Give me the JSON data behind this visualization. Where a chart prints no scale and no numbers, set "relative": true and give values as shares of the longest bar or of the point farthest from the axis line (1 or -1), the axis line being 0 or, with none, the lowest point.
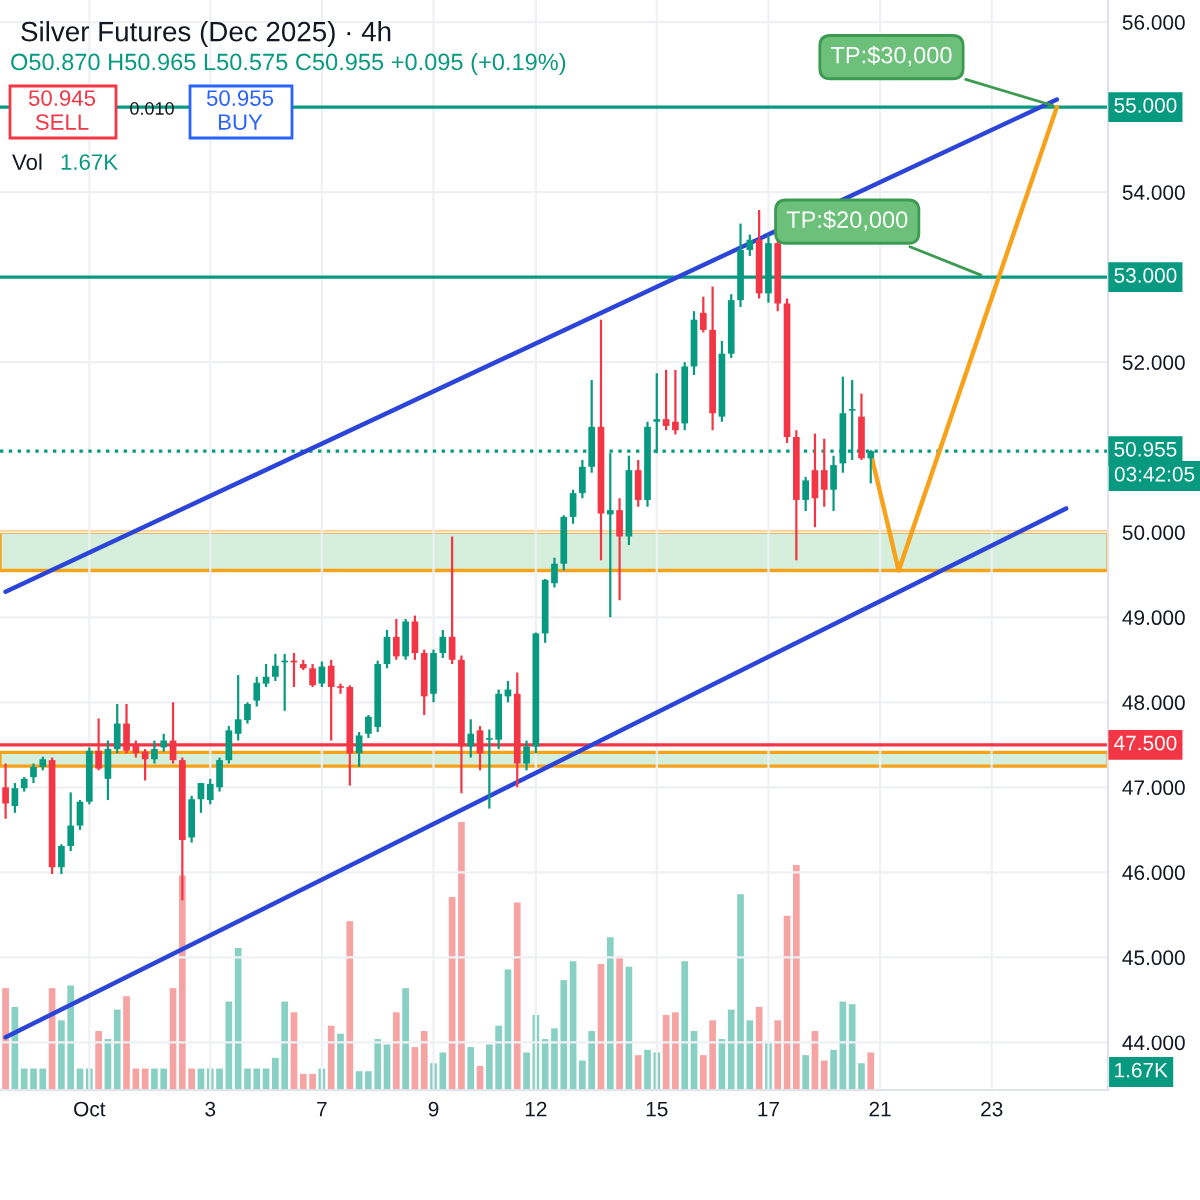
{
  "chart_data": [
    {
      "type": "candlestick",
      "title": "Silver Futures (Dec 2025) · 4h",
      "subtitle": "O50.870 H50.965 L50.575 C50.955 +0.095 (+0.19%)",
      "categories": [
        null,
        null,
        null,
        null,
        null,
        null,
        null,
        null,
        null,
        "Oct",
        null,
        null,
        null,
        null,
        null,
        null,
        null,
        null,
        null,
        null,
        null,
        null,
        "3",
        null,
        null,
        null,
        null,
        null,
        null,
        null,
        null,
        null,
        null,
        null,
        "7",
        null,
        null,
        null,
        null,
        null,
        null,
        null,
        null,
        null,
        null,
        null,
        "9",
        null,
        null,
        null,
        null,
        null,
        null,
        null,
        null,
        null,
        null,
        "12",
        null,
        null,
        null,
        null,
        null,
        null,
        null,
        null,
        null,
        null,
        null,
        null,
        "15",
        null,
        null,
        null,
        null,
        null,
        null,
        null,
        null,
        null,
        null,
        null,
        "17",
        null,
        null,
        null,
        null,
        null,
        null,
        null,
        null,
        null,
        null,
        null,
        "21",
        null,
        null,
        null,
        null,
        null,
        null,
        null,
        null,
        null,
        null,
        null,
        "23",
        null,
        null,
        null,
        null,
        null,
        null,
        null,
        null,
        null,
        null,
        null,
        null
      ],
      "ohlc": [
        [
          47.0,
          47.28,
          46.63,
          46.81
        ],
        [
          46.78,
          47.05,
          46.7,
          46.99
        ],
        [
          46.99,
          47.12,
          46.95,
          47.1
        ],
        [
          47.12,
          47.28,
          47.05,
          47.24
        ],
        [
          47.24,
          47.36,
          47.2,
          47.33
        ],
        [
          47.32,
          47.35,
          45.98,
          46.06
        ],
        [
          46.06,
          46.33,
          45.98,
          46.31
        ],
        [
          46.31,
          46.94,
          46.25,
          46.55
        ],
        [
          46.55,
          46.85,
          46.5,
          46.83
        ],
        [
          46.83,
          47.47,
          46.8,
          47.43
        ],
        [
          47.43,
          47.81,
          47.2,
          47.22
        ],
        [
          47.1,
          47.55,
          46.85,
          47.45
        ],
        [
          47.45,
          47.98,
          47.4,
          47.75
        ],
        [
          47.75,
          47.98,
          47.4,
          47.43
        ],
        [
          47.5,
          47.55,
          47.35,
          47.4
        ],
        [
          47.42,
          47.45,
          47.08,
          47.33
        ],
        [
          47.33,
          47.55,
          47.28,
          47.45
        ],
        [
          47.47,
          47.63,
          47.42,
          47.55
        ],
        [
          47.55,
          48.0,
          47.28,
          47.32
        ],
        [
          47.32,
          47.35,
          45.67,
          46.38
        ],
        [
          46.41,
          46.9,
          46.35,
          46.86
        ],
        [
          46.86,
          47.05,
          46.7,
          47.05
        ],
        [
          46.85,
          47.1,
          46.8,
          47.04
        ],
        [
          47.0,
          47.35,
          46.95,
          47.32
        ],
        [
          47.32,
          47.72,
          47.28,
          47.67
        ],
        [
          47.63,
          48.32,
          47.55,
          47.8
        ],
        [
          47.79,
          48.0,
          47.75,
          47.98
        ],
        [
          48.02,
          48.3,
          47.95,
          48.23
        ],
        [
          48.22,
          48.45,
          48.18,
          48.3
        ],
        [
          48.3,
          48.57,
          48.25,
          48.43
        ],
        [
          48.47,
          48.57,
          47.9,
          48.48
        ],
        [
          48.48,
          48.58,
          48.18,
          48.47
        ],
        [
          48.45,
          48.5,
          48.38,
          48.4
        ],
        [
          48.4,
          48.45,
          48.18,
          48.2
        ],
        [
          48.22,
          48.48,
          48.18,
          48.42
        ],
        [
          48.43,
          48.5,
          47.55,
          48.18
        ],
        [
          48.18,
          48.22,
          48.1,
          48.17
        ],
        [
          48.18,
          48.2,
          47.02,
          47.4
        ],
        [
          47.4,
          47.65,
          47.24,
          47.61
        ],
        [
          47.63,
          47.85,
          47.58,
          47.83
        ],
        [
          47.71,
          48.49,
          47.65,
          48.45
        ],
        [
          48.45,
          48.85,
          48.4,
          48.77
        ],
        [
          48.77,
          48.98,
          48.5,
          48.54
        ],
        [
          48.54,
          48.98,
          48.5,
          48.95
        ],
        [
          48.95,
          49.02,
          48.5,
          48.58
        ],
        [
          48.58,
          48.62,
          47.85,
          48.07
        ],
        [
          48.1,
          48.62,
          48.0,
          48.58
        ],
        [
          48.58,
          48.85,
          48.52,
          48.77
        ],
        [
          48.77,
          49.95,
          48.45,
          48.5
        ],
        [
          48.5,
          48.55,
          46.93,
          47.48
        ],
        [
          47.48,
          47.8,
          47.35,
          47.63
        ],
        [
          47.67,
          47.72,
          47.2,
          47.4
        ],
        [
          47.56,
          47.68,
          46.75,
          47.57
        ],
        [
          47.56,
          48.15,
          47.45,
          48.1
        ],
        [
          48.07,
          48.25,
          48.0,
          48.15
        ],
        [
          48.1,
          48.35,
          47.0,
          47.28
        ],
        [
          47.28,
          47.55,
          47.2,
          47.48
        ],
        [
          47.48,
          48.82,
          47.4,
          48.81
        ],
        [
          48.81,
          49.45,
          48.7,
          49.44
        ],
        [
          49.4,
          49.7,
          49.35,
          49.63
        ],
        [
          49.63,
          50.2,
          49.55,
          50.18
        ],
        [
          50.18,
          50.5,
          50.1,
          50.46
        ],
        [
          50.46,
          50.85,
          50.4,
          50.77
        ],
        [
          50.77,
          51.79,
          50.7,
          51.24
        ],
        [
          51.24,
          52.5,
          49.67,
          50.22
        ],
        [
          50.21,
          50.93,
          49.0,
          50.26
        ],
        [
          50.26,
          50.4,
          49.2,
          49.95
        ],
        [
          49.95,
          50.9,
          49.85,
          50.73
        ],
        [
          50.73,
          50.85,
          50.3,
          50.38
        ],
        [
          50.38,
          51.3,
          50.3,
          51.24
        ],
        [
          51.3,
          51.87,
          50.93,
          51.33
        ],
        [
          51.33,
          51.91,
          51.2,
          51.25
        ],
        [
          51.3,
          51.91,
          51.15,
          51.2
        ],
        [
          51.28,
          52.0,
          51.2,
          51.95
        ],
        [
          51.95,
          52.6,
          51.85,
          52.5
        ],
        [
          52.58,
          52.77,
          52.35,
          52.38
        ],
        [
          52.38,
          52.89,
          51.2,
          51.4
        ],
        [
          51.36,
          52.25,
          51.3,
          52.1
        ],
        [
          52.1,
          52.8,
          52.05,
          52.73
        ],
        [
          52.73,
          53.63,
          52.65,
          53.32
        ],
        [
          53.32,
          53.5,
          53.25,
          53.44
        ],
        [
          53.44,
          53.79,
          52.75,
          52.81
        ],
        [
          52.81,
          53.5,
          52.7,
          53.4
        ],
        [
          53.4,
          53.45,
          52.6,
          52.69
        ],
        [
          52.69,
          52.75,
          51.05,
          51.12
        ],
        [
          51.12,
          51.2,
          49.67,
          50.38
        ],
        [
          50.38,
          50.65,
          50.25,
          50.61
        ],
        [
          50.73,
          51.16,
          50.06,
          50.4
        ],
        [
          50.73,
          51.1,
          50.3,
          50.5
        ],
        [
          50.5,
          50.9,
          50.25,
          50.79
        ],
        [
          50.81,
          51.83,
          50.7,
          51.4
        ],
        [
          51.43,
          51.79,
          50.85,
          51.45
        ],
        [
          51.36,
          51.63,
          50.85,
          50.87
        ],
        [
          50.87,
          50.965,
          50.575,
          50.955
        ],
        null,
        null,
        null,
        null,
        null,
        null,
        null,
        null,
        null,
        null,
        null,
        null,
        null,
        null,
        null,
        null,
        null,
        null,
        null,
        null,
        null,
        null,
        null,
        null,
        null
      ],
      "series": [
        {
          "type": "line",
          "color": "#2b45d8",
          "values": [
            49.3,
            null,
            null,
            null,
            null,
            null,
            null,
            null,
            null,
            null,
            null,
            null,
            null,
            null,
            null,
            null,
            null,
            null,
            null,
            null,
            null,
            null,
            null,
            null,
            null,
            null,
            null,
            null,
            null,
            null,
            null,
            null,
            null,
            null,
            null,
            null,
            null,
            null,
            null,
            null,
            null,
            null,
            null,
            null,
            null,
            null,
            null,
            null,
            null,
            null,
            null,
            null,
            null,
            null,
            null,
            null,
            null,
            null,
            null,
            null,
            null,
            null,
            null,
            null,
            null,
            null,
            null,
            null,
            null,
            null,
            null,
            null,
            null,
            null,
            null,
            null,
            null,
            null,
            null,
            null,
            null,
            null,
            null,
            null,
            null,
            null,
            null,
            null,
            null,
            null,
            null,
            null,
            null,
            null,
            null,
            null,
            null,
            null,
            null,
            null,
            null,
            null,
            null,
            null,
            null,
            null,
            null,
            null,
            null,
            null,
            null,
            null,
            null,
            55.09,
            null,
            null,
            null,
            null,
            null
          ]
        },
        {
          "type": "line",
          "color": "#2b45d8",
          "values": [
            44.06,
            null,
            null,
            null,
            null,
            null,
            null,
            null,
            null,
            null,
            null,
            null,
            null,
            null,
            null,
            null,
            null,
            null,
            null,
            null,
            null,
            null,
            null,
            null,
            null,
            null,
            null,
            null,
            null,
            null,
            null,
            null,
            null,
            null,
            null,
            null,
            null,
            null,
            null,
            null,
            null,
            null,
            null,
            null,
            null,
            null,
            null,
            null,
            null,
            null,
            null,
            null,
            null,
            null,
            null,
            null,
            null,
            null,
            null,
            null,
            null,
            null,
            null,
            null,
            null,
            null,
            null,
            null,
            null,
            null,
            null,
            null,
            null,
            null,
            null,
            null,
            null,
            null,
            null,
            null,
            null,
            null,
            null,
            null,
            null,
            null,
            null,
            null,
            null,
            null,
            null,
            null,
            null,
            null,
            null,
            null,
            null,
            null,
            null,
            null,
            null,
            null,
            null,
            null,
            null,
            null,
            null,
            null,
            null,
            null,
            null,
            null,
            null,
            null,
            50.28,
            null,
            null,
            null,
            null
          ]
        },
        {
          "type": "line",
          "color": "#f7a21b",
          "values": [
            null,
            null,
            null,
            null,
            null,
            null,
            null,
            null,
            null,
            null,
            null,
            null,
            null,
            null,
            null,
            null,
            null,
            null,
            null,
            null,
            null,
            null,
            null,
            null,
            null,
            null,
            null,
            null,
            null,
            null,
            null,
            null,
            null,
            null,
            null,
            null,
            null,
            null,
            null,
            null,
            null,
            null,
            null,
            null,
            null,
            null,
            null,
            null,
            null,
            null,
            null,
            null,
            null,
            null,
            null,
            null,
            null,
            null,
            null,
            null,
            null,
            null,
            null,
            null,
            null,
            null,
            null,
            null,
            null,
            null,
            null,
            null,
            null,
            null,
            null,
            null,
            null,
            null,
            null,
            null,
            null,
            null,
            null,
            null,
            null,
            null,
            null,
            null,
            null,
            null,
            null,
            null,
            null,
            50.93,
            null,
            null,
            49.55,
            null,
            null,
            null,
            null,
            null,
            null,
            null,
            null,
            null,
            null,
            null,
            null,
            null,
            null,
            null,
            null,
            55.0,
            null,
            null,
            null,
            null,
            null
          ]
        }
      ],
      "ref_lines": [
        {
          "axis": "y",
          "value": 55.0,
          "label": "55.000",
          "color": "#089981"
        },
        {
          "axis": "y",
          "value": 53.0,
          "label": "53.000",
          "color": "#089981"
        },
        {
          "axis": "y",
          "value": 50.955,
          "label": "50.955",
          "color": "#089981",
          "line_style": "dotted"
        },
        {
          "axis": "y",
          "value": 47.5,
          "label": "47.500",
          "color": "#f23645"
        }
      ],
      "bands": [
        {
          "axis": "y",
          "from": 49.55,
          "to": 50.0,
          "color": "#d6efdc"
        },
        {
          "axis": "y",
          "from": 47.25,
          "to": 47.41,
          "color": "#d6efdc"
        }
      ],
      "annotations": [
        "50.945",
        "SELL",
        "0.010",
        "50.955",
        "BUY",
        "Vol",
        "1.67K",
        "03:42:05",
        {
          "text": "TP:$30,000",
          "y": 55.0
        },
        {
          "text": "TP:$20,000",
          "y": 53.0
        }
      ],
      "ylim": [
        43.44,
        56.26
      ],
      "yticks": [
        {
          "value": 44,
          "label": "44.000"
        },
        {
          "value": 45,
          "label": "45.000"
        },
        {
          "value": 46,
          "label": "46.000"
        },
        {
          "value": 47,
          "label": "47.000"
        },
        {
          "value": 48,
          "label": "48.000"
        },
        {
          "value": 49,
          "label": "49.000"
        },
        {
          "value": 50,
          "label": "50.000"
        },
        {
          "value": 52,
          "label": "52.000"
        },
        {
          "value": 54,
          "label": "54.000"
        },
        {
          "value": 56,
          "label": "56.000"
        }
      ],
      "grid": true
    },
    {
      "type": "bar",
      "relative": true,
      "tick_labels": false,
      "categories": [
        null,
        null,
        null,
        null,
        null,
        null,
        null,
        null,
        null,
        null,
        null,
        null,
        null,
        null,
        null,
        null,
        null,
        null,
        null,
        null,
        null,
        null,
        null,
        null,
        null,
        null,
        null,
        null,
        null,
        null,
        null,
        null,
        null,
        null,
        null,
        null,
        null,
        null,
        null,
        null,
        null,
        null,
        null,
        null,
        null,
        null,
        null,
        null,
        null,
        null,
        null,
        null,
        null,
        null,
        null,
        null,
        null,
        null,
        null,
        null,
        null,
        null,
        null,
        null,
        null,
        null,
        null,
        null,
        null,
        null,
        null,
        null,
        null,
        null,
        null,
        null,
        null,
        null,
        null,
        null,
        null,
        null,
        null,
        null,
        null,
        null,
        null,
        null,
        null,
        null,
        null,
        null,
        null,
        null
      ],
      "values": [
        0.38,
        0.31,
        0.08,
        0.08,
        0.08,
        0.38,
        0.26,
        0.39,
        0.08,
        0.08,
        0.22,
        0.19,
        0.3,
        0.35,
        0.08,
        0.08,
        0.08,
        0.08,
        0.38,
        0.8,
        0.08,
        0.08,
        0.08,
        0.08,
        0.33,
        0.53,
        0.08,
        0.08,
        0.08,
        0.12,
        0.33,
        0.29,
        0.06,
        0.06,
        0.08,
        0.24,
        0.21,
        0.63,
        0.07,
        0.07,
        0.19,
        0.17,
        0.29,
        0.38,
        0.16,
        0.22,
        0.1,
        0.14,
        0.72,
        1,
        0.16,
        0.09,
        0.17,
        0.24,
        0.45,
        0.7,
        0.14,
        0.28,
        0.19,
        0.23,
        0.41,
        0.48,
        0.11,
        0.22,
        0.47,
        0.57,
        0.5,
        0.46,
        0.13,
        0.15,
        0.14,
        0.28,
        0.29,
        0.48,
        0.22,
        0.13,
        0.26,
        0.19,
        0.3,
        0.73,
        0.26,
        0.31,
        0.18,
        0.26,
        0.65,
        0.84,
        0.13,
        0.22,
        0.11,
        0.15,
        0.33,
        0.32,
        0.1,
        0.14
      ],
      "colors": [
        "#f5a3a3",
        "#89d0c4",
        "#89d0c4",
        "#89d0c4",
        "#89d0c4",
        "#f5a3a3",
        "#89d0c4",
        "#89d0c4",
        "#89d0c4",
        "#89d0c4",
        "#f5a3a3",
        "#89d0c4",
        "#89d0c4",
        "#f5a3a3",
        "#f5a3a3",
        "#f5a3a3",
        "#89d0c4",
        "#89d0c4",
        "#f5a3a3",
        "#f5a3a3",
        "#f5a3a3",
        "#89d0c4",
        "#89d0c4",
        "#89d0c4",
        "#89d0c4",
        "#89d0c4",
        "#89d0c4",
        "#89d0c4",
        "#89d0c4",
        "#89d0c4",
        "#89d0c4",
        "#f5a3a3",
        "#f5a3a3",
        "#f5a3a3",
        "#89d0c4",
        "#f5a3a3",
        "#89d0c4",
        "#f5a3a3",
        "#89d0c4",
        "#89d0c4",
        "#89d0c4",
        "#89d0c4",
        "#f5a3a3",
        "#89d0c4",
        "#f5a3a3",
        "#f5a3a3",
        "#89d0c4",
        "#89d0c4",
        "#f5a3a3",
        "#f5a3a3",
        "#89d0c4",
        "#f5a3a3",
        "#89d0c4",
        "#89d0c4",
        "#89d0c4",
        "#f5a3a3",
        "#89d0c4",
        "#89d0c4",
        "#89d0c4",
        "#89d0c4",
        "#89d0c4",
        "#89d0c4",
        "#89d0c4",
        "#89d0c4",
        "#f5a3a3",
        "#89d0c4",
        "#f5a3a3",
        "#89d0c4",
        "#f5a3a3",
        "#89d0c4",
        "#89d0c4",
        "#f5a3a3",
        "#f5a3a3",
        "#89d0c4",
        "#89d0c4",
        "#f5a3a3",
        "#f5a3a3",
        "#89d0c4",
        "#89d0c4",
        "#89d0c4",
        "#89d0c4",
        "#f5a3a3",
        "#89d0c4",
        "#f5a3a3",
        "#f5a3a3",
        "#f5a3a3",
        "#89d0c4",
        "#f5a3a3",
        "#f5a3a3",
        "#89d0c4",
        "#89d0c4",
        "#89d0c4",
        "#89d0c4",
        "#f5a3a3"
      ],
      "annotations": [
        "1.67K"
      ]
    }
  ]
}
